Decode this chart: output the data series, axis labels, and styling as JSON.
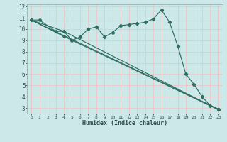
{
  "xlabel": "Humidex (Indice chaleur)",
  "bg_color": "#cce8e8",
  "grid_color": "#e8c8c8",
  "line_color": "#2e6e62",
  "xlim": [
    -0.5,
    23.5
  ],
  "ylim": [
    2.5,
    12.2
  ],
  "xticks": [
    0,
    1,
    2,
    3,
    4,
    5,
    6,
    7,
    8,
    9,
    10,
    11,
    12,
    13,
    14,
    15,
    16,
    17,
    18,
    19,
    20,
    21,
    22,
    23
  ],
  "yticks": [
    3,
    4,
    5,
    6,
    7,
    8,
    9,
    10,
    11,
    12
  ],
  "series1_x": [
    0,
    1,
    3,
    4,
    5,
    6,
    7,
    8,
    9,
    10,
    11,
    12,
    13,
    14,
    15,
    16,
    17,
    18,
    19,
    20,
    21,
    22,
    23
  ],
  "series1_y": [
    10.8,
    10.8,
    9.8,
    9.8,
    9.0,
    9.3,
    10.0,
    10.2,
    9.3,
    9.7,
    10.3,
    10.4,
    10.5,
    10.6,
    10.9,
    11.7,
    10.6,
    8.5,
    6.0,
    5.1,
    4.0,
    3.2,
    2.9
  ],
  "series2_x": [
    0,
    23
  ],
  "series2_y": [
    10.8,
    2.9
  ],
  "series3_x": [
    0,
    4,
    23
  ],
  "series3_y": [
    10.8,
    9.8,
    2.85
  ],
  "series4_x": [
    0,
    4,
    23
  ],
  "series4_y": [
    10.8,
    9.35,
    2.85
  ]
}
